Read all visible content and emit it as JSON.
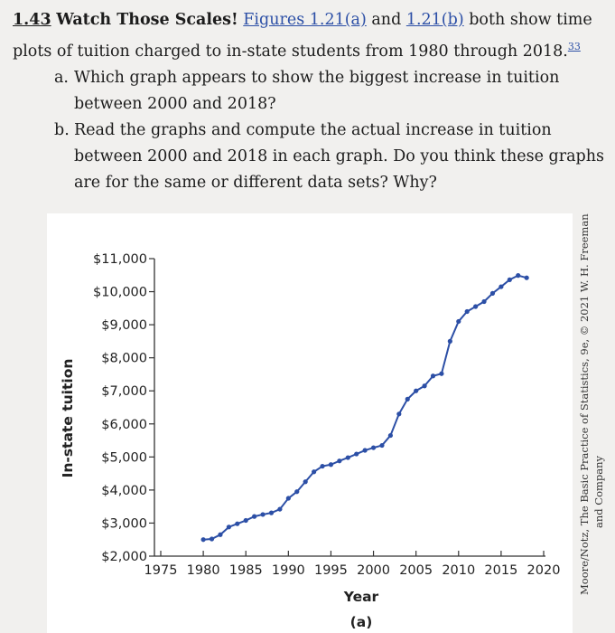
{
  "problem": {
    "number": "1.43",
    "title": "Watch Those Scales!",
    "intro_link_a": "Figures 1.21(a)",
    "intro_and": " and ",
    "intro_link_b": "1.21(b)",
    "intro_rest": " both show time plots of tuition charged to in-state students from 1980 through 2018.",
    "footnote": "33",
    "parts": [
      {
        "letter": "a.",
        "text": "Which graph appears to show the biggest increase in tuition between 2000 and 2018?"
      },
      {
        "letter": "b.",
        "text": "Read the graphs and compute the actual increase in tuition between 2000 and 2018 in each graph. Do you think these graphs are for the same or different data sets? Why?"
      }
    ]
  },
  "credit": {
    "line1": "Moore/Notz, The Basic Practice of Statistics, 9e, © 2021 W. H. Freeman",
    "line2": "and Company"
  },
  "chart_data": {
    "type": "line",
    "xlabel": "Year",
    "ylabel": "In-state tuition",
    "caption": "(a)",
    "xlim": [
      1975,
      2020
    ],
    "ylim": [
      2000,
      11000
    ],
    "x_ticks": [
      1975,
      1980,
      1985,
      1990,
      1995,
      2000,
      2005,
      2010,
      2015,
      2020
    ],
    "y_ticks": [
      2000,
      3000,
      4000,
      5000,
      6000,
      7000,
      8000,
      9000,
      10000,
      11000
    ],
    "y_tick_labels": [
      "$2,000",
      "$3,000",
      "$4,000",
      "$5,000",
      "$6,000",
      "$7,000",
      "$8,000",
      "$9,000",
      "$10,000",
      "$11,000"
    ],
    "x": [
      1980,
      1981,
      1982,
      1983,
      1984,
      1985,
      1986,
      1987,
      1988,
      1989,
      1990,
      1991,
      1992,
      1993,
      1994,
      1995,
      1996,
      1997,
      1998,
      1999,
      2000,
      2001,
      2002,
      2003,
      2004,
      2005,
      2006,
      2007,
      2008,
      2009,
      2010,
      2011,
      2012,
      2013,
      2014,
      2015,
      2016,
      2017,
      2018
    ],
    "y": [
      2500,
      2520,
      2650,
      2880,
      2980,
      3080,
      3200,
      3260,
      3310,
      3420,
      3750,
      3950,
      4250,
      4550,
      4720,
      4770,
      4880,
      4980,
      5090,
      5200,
      5280,
      5350,
      5650,
      6300,
      6750,
      7000,
      7150,
      7450,
      7520,
      8500,
      9100,
      9400,
      9550,
      9700,
      9950,
      10150,
      10360,
      10490,
      10420
    ]
  }
}
